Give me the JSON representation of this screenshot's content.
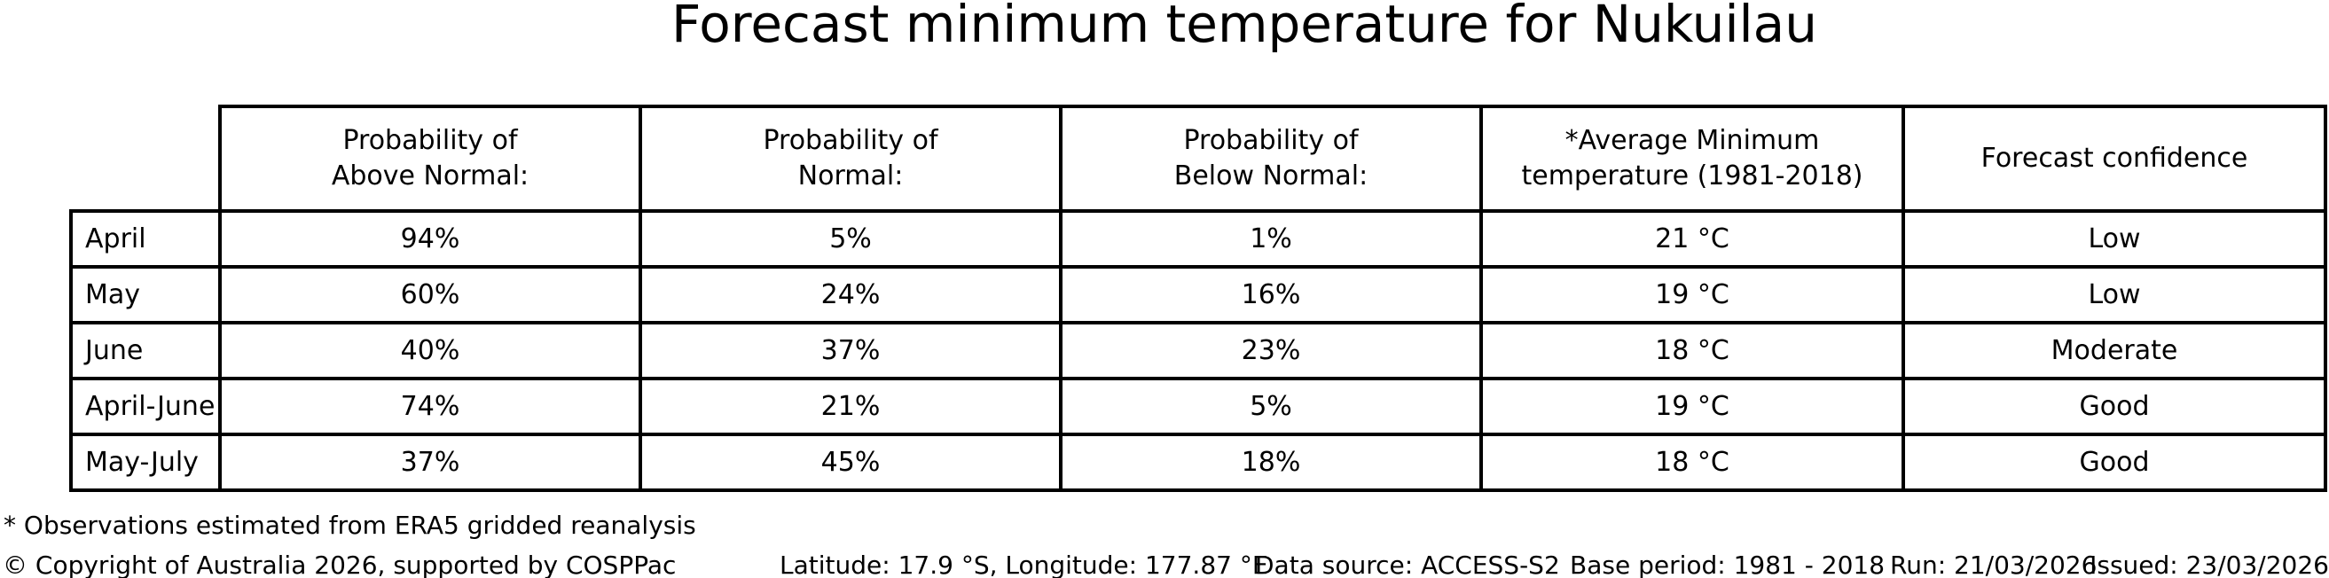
{
  "chart_data": {
    "type": "table",
    "title": "Forecast minimum temperature for Nukuilau",
    "columns": [
      "Probability of\nAbove Normal:",
      "Probability of\nNormal:",
      "Probability of\nBelow Normal:",
      "*Average Minimum\ntemperature (1981-2018)",
      "Forecast confidence"
    ],
    "row_labels": [
      "April",
      "May",
      "June",
      "April-June",
      "May-July"
    ],
    "rows": [
      [
        "94%",
        "5%",
        "1%",
        "21 °C",
        "Low"
      ],
      [
        "60%",
        "24%",
        "16%",
        "19 °C",
        "Low"
      ],
      [
        "40%",
        "37%",
        "23%",
        "18 °C",
        "Moderate"
      ],
      [
        "74%",
        "21%",
        "5%",
        "19 °C",
        "Good"
      ],
      [
        "37%",
        "45%",
        "18%",
        "18 °C",
        "Good"
      ]
    ],
    "footnote": "* Observations estimated from ERA5 gridded reanalysis",
    "footer": {
      "copyright": "© Copyright of Australia 2026, supported by COSPPac",
      "location": "Latitude: 17.9 °S, Longitude: 177.87 °E",
      "data_source": "Data source: ACCESS-S2",
      "base_period": "Base period: 1981 - 2018",
      "run": "Run: 21/03/2026",
      "issued": "Issued: 23/03/2026"
    },
    "layout": {
      "grid": "on",
      "text_color": "#000000",
      "background_color": "#ffffff",
      "border_color": "#000000"
    }
  }
}
